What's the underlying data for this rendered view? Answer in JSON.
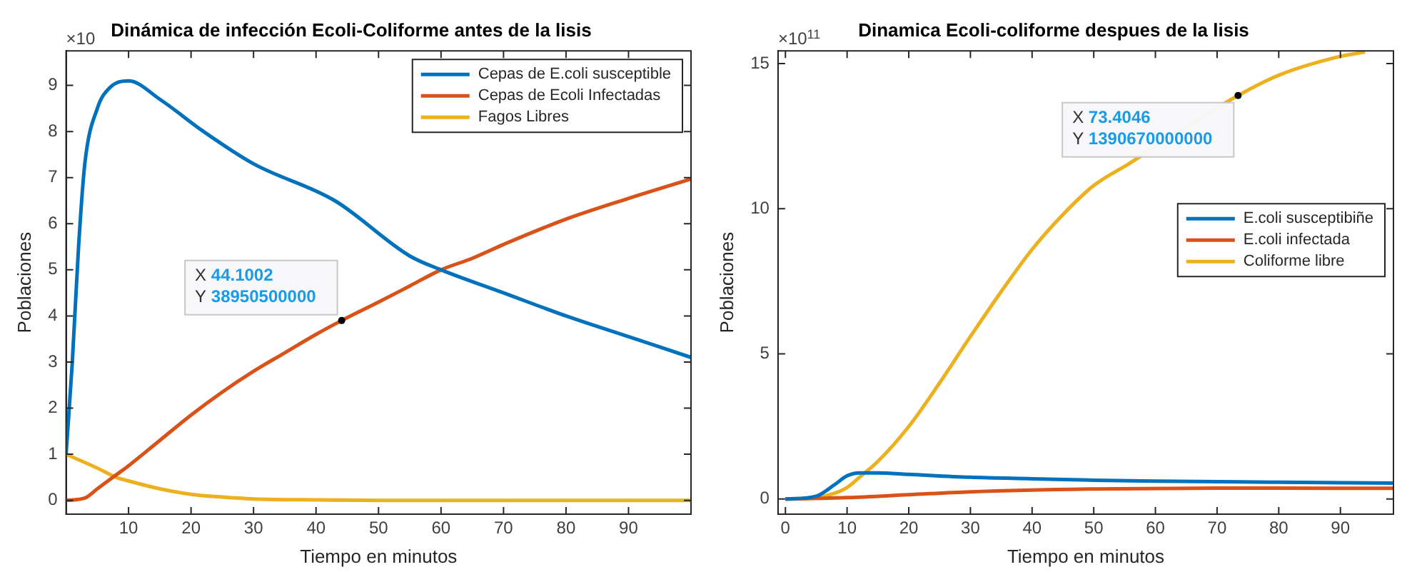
{
  "chart_data": [
    {
      "type": "line",
      "title": "Dinámica de infección Ecoli-Coliforme antes de la lisis",
      "xlabel": "Tiempo en minutos",
      "ylabel": "Poblaciones",
      "xlim": [
        0,
        100
      ],
      "xticks": [
        10,
        20,
        30,
        40,
        50,
        60,
        70,
        80,
        90
      ],
      "ylim": [
        -0.3,
        9.75
      ],
      "yticks": [
        0,
        1,
        2,
        3,
        4,
        5,
        6,
        7,
        8,
        9
      ],
      "grid": false,
      "legend": "top right",
      "series": [
        {
          "name": "Cepas de E.coli susceptible",
          "color": "#0072bd",
          "x": [
            0,
            1,
            2,
            3,
            5,
            7,
            10,
            15,
            22,
            30,
            43,
            55,
            60,
            70,
            80,
            90,
            100
          ],
          "values": [
            1,
            3,
            5.5,
            7.3,
            8.5,
            8.95,
            9.1,
            8.7,
            8.0,
            7.3,
            6.5,
            5.3,
            5.0,
            4.5,
            4.0,
            3.55,
            3.1
          ]
        },
        {
          "name": "Cepas de Ecoli Infectadas",
          "color": "#d95319",
          "x": [
            0,
            3,
            5,
            8,
            10,
            15,
            20,
            25,
            30,
            35,
            40,
            44.1002,
            50,
            55,
            60,
            65,
            70,
            80,
            90,
            100
          ],
          "values": [
            0,
            0.05,
            0.25,
            0.55,
            0.75,
            1.3,
            1.85,
            2.35,
            2.8,
            3.2,
            3.6,
            3.9,
            4.3,
            4.65,
            5.0,
            5.25,
            5.55,
            6.1,
            6.55,
            6.97
          ]
        },
        {
          "name": "Fagos Libres",
          "color": "#edb120",
          "x": [
            0,
            5,
            8,
            10,
            15,
            20,
            25,
            30,
            40,
            50,
            100
          ],
          "values": [
            1,
            0.7,
            0.5,
            0.42,
            0.25,
            0.13,
            0.07,
            0.03,
            0.01,
            0,
            0
          ]
        }
      ],
      "annotations": [
        "×10",
        {
          "text": "X 44.1002\nY 38950500000",
          "x": 44.1002,
          "y": 3.9
        }
      ]
    },
    {
      "type": "line",
      "title": "Dinamica Ecoli-coliforme despues de la lisis",
      "xlabel": "Tiempo en minutos",
      "ylabel": "Poblaciones",
      "xlim": [
        -1.2,
        98.6
      ],
      "xticks": [
        0,
        10,
        20,
        30,
        40,
        50,
        60,
        70,
        80,
        90
      ],
      "ylim": [
        -0.52,
        15.44
      ],
      "yticks": [
        0,
        5,
        10,
        15
      ],
      "grid": false,
      "legend": "right",
      "series": [
        {
          "name": "E.coli susceptibiñe",
          "color": "#0072bd",
          "x": [
            0,
            5,
            8,
            10,
            12,
            15,
            20,
            30,
            40,
            50,
            60,
            80,
            98.6
          ],
          "values": [
            0,
            0.1,
            0.5,
            0.8,
            0.9,
            0.9,
            0.85,
            0.75,
            0.7,
            0.65,
            0.62,
            0.58,
            0.55
          ]
        },
        {
          "name": "E.coli infectada",
          "color": "#d95319",
          "x": [
            0,
            10,
            20,
            30,
            50,
            70,
            98.6
          ],
          "values": [
            0,
            0.05,
            0.15,
            0.25,
            0.35,
            0.38,
            0.37
          ]
        },
        {
          "name": "Coliforme libre",
          "color": "#edb120",
          "x": [
            0,
            5,
            8,
            10,
            12,
            15,
            20,
            25,
            30,
            35,
            40,
            45,
            50,
            55.7,
            60,
            65,
            73.4046,
            80,
            90,
            94
          ],
          "values": [
            0,
            0.05,
            0.2,
            0.4,
            0.75,
            1.3,
            2.5,
            4.0,
            5.6,
            7.15,
            8.6,
            9.8,
            10.8,
            11.55,
            null,
            null,
            13.9,
            14.6,
            15.25,
            15.4
          ]
        }
      ],
      "annotations": [
        "×10$^{11}$",
        {
          "text": "X 73.4046\nY 1390670000000",
          "x": 73.4046,
          "y": 13.9
        }
      ]
    }
  ]
}
